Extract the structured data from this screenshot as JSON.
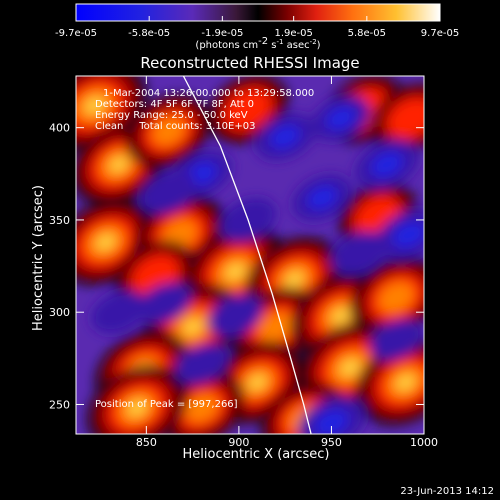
{
  "chart_data": {
    "type": "heatmap",
    "title": "Reconstructed RHESSI Image",
    "xlabel": "Heliocentric X (arcsec)",
    "ylabel": "Heliocentric Y (arcsec)",
    "x_range": [
      812,
      1000
    ],
    "y_range": [
      234,
      428
    ],
    "x_ticks": [
      850,
      900,
      950,
      1000
    ],
    "y_ticks": [
      250,
      300,
      350,
      400
    ],
    "colorbar": {
      "tick_labels": [
        "-9.7e-05",
        "-5.8e-05",
        "-1.9e-05",
        "1.9e-05",
        "5.8e-05",
        "9.7e-05"
      ],
      "range": [
        -9.7e-05,
        9.7e-05
      ],
      "unit_text": "(photons cm",
      "unit_sup1": "-2",
      "unit_mid1": " s",
      "unit_sup2": "-1",
      "unit_mid2": " asec",
      "unit_sup3": "-2",
      "unit_end": ")"
    },
    "info_lines": [
      "1-Mar-2004 13:26:00.000 to 13:29:58.000",
      "Detectors: 4F 5F 6F 7F 8F, Att 0",
      "Energy Range: 25.0 - 50.0 keV",
      "Clean     Total counts: 3.10E+03"
    ],
    "peak_label": "Position of Peak = [997,266]",
    "limb_curve": [
      [
        870,
        428
      ],
      [
        890,
        390
      ],
      [
        905,
        350
      ],
      [
        918,
        310
      ],
      [
        928,
        275
      ],
      [
        935,
        250
      ],
      [
        939,
        234
      ]
    ],
    "hot_blobs": [
      [
        822,
        412,
        1.0
      ],
      [
        835,
        380,
        0.8
      ],
      [
        862,
        398,
        0.6
      ],
      [
        828,
        338,
        0.9
      ],
      [
        868,
        342,
        0.75
      ],
      [
        898,
        322,
        1.0
      ],
      [
        875,
        292,
        0.9
      ],
      [
        848,
        268,
        0.8
      ],
      [
        930,
        318,
        0.85
      ],
      [
        920,
        292,
        0.7
      ],
      [
        955,
        298,
        0.9
      ],
      [
        985,
        308,
        0.75
      ],
      [
        910,
        262,
        0.8
      ],
      [
        960,
        270,
        1.0
      ],
      [
        990,
        262,
        0.9
      ],
      [
        935,
        242,
        0.6
      ],
      [
        880,
        248,
        0.6
      ],
      [
        845,
        248,
        0.9
      ],
      [
        905,
        410,
        0.5
      ],
      [
        968,
        410,
        0.5
      ],
      [
        975,
        352,
        0.45
      ],
      [
        993,
        405,
        0.5
      ],
      [
        855,
        320,
        0.5
      ]
    ],
    "cold_blobs": [
      [
        880,
        375,
        0.7
      ],
      [
        925,
        395,
        0.7
      ],
      [
        955,
        405,
        0.65
      ],
      [
        945,
        362,
        0.7
      ],
      [
        980,
        380,
        0.8
      ],
      [
        992,
        342,
        0.85
      ],
      [
        965,
        332,
        0.6
      ],
      [
        905,
        350,
        0.6
      ],
      [
        862,
        365,
        0.6
      ],
      [
        898,
        298,
        0.55
      ],
      [
        860,
        305,
        0.5
      ],
      [
        950,
        240,
        0.9
      ],
      [
        985,
        285,
        0.5
      ],
      [
        880,
        272,
        0.5
      ],
      [
        835,
        300,
        0.55
      ]
    ],
    "base_level": -0.3
  },
  "footer": {
    "date": "23-Jun-2013 14:12"
  }
}
